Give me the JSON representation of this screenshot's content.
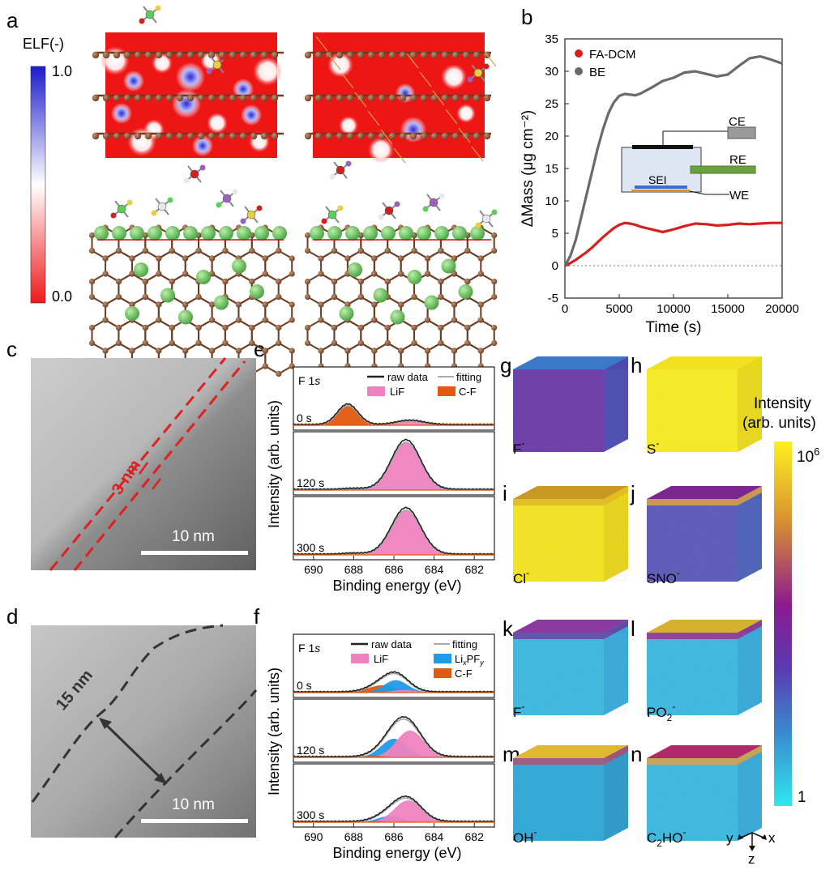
{
  "colors": {
    "elf_high": "#1c1ccc",
    "elf_low": "#ee1a1a",
    "red_series": "#d62020",
    "gray_series": "#6a6a6a",
    "lif": "#ee82c0",
    "cf": "#e05a10",
    "lipf": "#1e9be8",
    "tof_low": "#2ee8ee",
    "tof_high": "#fff020"
  },
  "panel_labels": [
    "a",
    "b",
    "c",
    "d",
    "e",
    "f",
    "g",
    "h",
    "i",
    "j",
    "k",
    "l",
    "m",
    "n"
  ],
  "panel_a": {
    "colorbar_title": "ELF(-)",
    "colorbar_max": "1.0",
    "colorbar_min": "0.0"
  },
  "panel_b": {
    "chart_data": {
      "type": "line",
      "title": "",
      "xlabel": "Time (s)",
      "ylabel": "ΔMass (μg cm⁻²)",
      "xlim": [
        0,
        20000
      ],
      "ylim": [
        -5,
        35
      ],
      "xticks": [
        0,
        5000,
        10000,
        15000,
        20000
      ],
      "yticks": [
        -5,
        0,
        5,
        10,
        15,
        20,
        25,
        30,
        35
      ],
      "series": [
        {
          "name": "FA-DCM",
          "color": "#d62020",
          "x": [
            0,
            500,
            1000,
            1500,
            2000,
            2500,
            3000,
            3500,
            4000,
            4500,
            5000,
            5500,
            6000,
            6500,
            7000,
            8000,
            9000,
            10000,
            11000,
            12000,
            13000,
            14000,
            15000,
            16000,
            17000,
            18000,
            19000,
            20000
          ],
          "y": [
            0,
            0.4,
            0.9,
            1.5,
            2.1,
            2.8,
            3.6,
            4.4,
            5.1,
            5.8,
            6.3,
            6.6,
            6.5,
            6.3,
            6.0,
            5.6,
            5.2,
            5.6,
            6.1,
            6.5,
            6.4,
            6.2,
            6.3,
            6.5,
            6.4,
            6.5,
            6.6,
            6.6
          ]
        },
        {
          "name": "BE",
          "color": "#6a6a6a",
          "x": [
            0,
            500,
            1000,
            1500,
            2000,
            2500,
            3000,
            3500,
            4000,
            4500,
            5000,
            5500,
            6000,
            6500,
            7000,
            8000,
            9000,
            10000,
            11000,
            12000,
            13000,
            14000,
            15000,
            16000,
            17000,
            18000,
            19000,
            20000
          ],
          "y": [
            0,
            1.5,
            4,
            7.5,
            11,
            14.5,
            18,
            21,
            23.5,
            25.2,
            26.2,
            26.5,
            26.4,
            26.3,
            26.6,
            27.5,
            28.5,
            29,
            29.8,
            30,
            29.6,
            29.2,
            29.5,
            30.8,
            32,
            32.3,
            31.8,
            31.2
          ]
        }
      ],
      "legend": "top-left",
      "inset_labels": [
        "CE",
        "RE",
        "SEI",
        "WE"
      ]
    }
  },
  "panel_c": {
    "thickness": "3 nm",
    "scale": "10 nm"
  },
  "panel_d": {
    "thickness": "15 nm",
    "scale": "10 nm"
  },
  "panel_e": {
    "chart_data": {
      "type": "area",
      "title": "F 1s",
      "xlabel": "Binding energy (eV)",
      "ylabel": "Intensity (arb. units)",
      "xlim": [
        691,
        681
      ],
      "xticks": [
        690,
        688,
        686,
        684,
        682
      ],
      "legend": [
        "raw data",
        "fitting",
        "LiF",
        "C-F"
      ],
      "subplots": [
        {
          "label": "0 s",
          "components": [
            {
              "name": "C-F",
              "center": 688.3,
              "fwhm": 1.2,
              "height": 0.38
            },
            {
              "name": "LiF",
              "center": 685.2,
              "fwhm": 1.6,
              "height": 0.08
            }
          ]
        },
        {
          "label": "120 s",
          "components": [
            {
              "name": "LiF",
              "center": 685.4,
              "fwhm": 1.7,
              "height": 0.92
            },
            {
              "name": "C-F",
              "center": 688.0,
              "fwhm": 1.2,
              "height": 0.02
            }
          ]
        },
        {
          "label": "300 s",
          "components": [
            {
              "name": "LiF",
              "center": 685.4,
              "fwhm": 1.7,
              "height": 0.86
            },
            {
              "name": "C-F",
              "center": 688.0,
              "fwhm": 1.2,
              "height": 0.02
            }
          ]
        }
      ]
    }
  },
  "panel_f": {
    "chart_data": {
      "type": "area",
      "title": "F 1s",
      "xlabel": "Binding energy (eV)",
      "ylabel": "Intensity (arb. units)",
      "xlim": [
        691,
        681
      ],
      "xticks": [
        690,
        688,
        686,
        684,
        682
      ],
      "legend": [
        "raw data",
        "fitting",
        "LiF",
        "LixPFy",
        "C-F"
      ],
      "subplots": [
        {
          "label": "0 s",
          "components": [
            {
              "name": "C-F",
              "center": 686.6,
              "fwhm": 1.6,
              "height": 0.14
            },
            {
              "name": "LixPFy",
              "center": 685.9,
              "fwhm": 1.4,
              "height": 0.24
            },
            {
              "name": "LiF",
              "center": 685.5,
              "fwhm": 1.4,
              "height": 0.05
            }
          ]
        },
        {
          "label": "120 s",
          "components": [
            {
              "name": "LixPFy",
              "center": 686.0,
              "fwhm": 1.5,
              "height": 0.36
            },
            {
              "name": "LiF",
              "center": 685.2,
              "fwhm": 1.6,
              "height": 0.52
            },
            {
              "name": "C-F",
              "center": 687.0,
              "fwhm": 1.2,
              "height": 0.03
            }
          ]
        },
        {
          "label": "300 s",
          "components": [
            {
              "name": "LixPFy",
              "center": 686.2,
              "fwhm": 1.4,
              "height": 0.12
            },
            {
              "name": "LiF",
              "center": 685.3,
              "fwhm": 1.6,
              "height": 0.42
            },
            {
              "name": "C-F",
              "center": 687.0,
              "fwhm": 1.2,
              "height": 0.02
            }
          ]
        }
      ]
    }
  },
  "tof": {
    "cubes": [
      {
        "id": "g",
        "ion": "F",
        "charge": "-"
      },
      {
        "id": "h",
        "ion": "S",
        "charge": "-"
      },
      {
        "id": "i",
        "ion": "Cl",
        "charge": "-"
      },
      {
        "id": "j",
        "ion": "SNO",
        "charge": "-"
      },
      {
        "id": "k",
        "ion": "F",
        "charge": "-"
      },
      {
        "id": "l",
        "ion": "PO",
        "sub": "2",
        "charge": "-"
      },
      {
        "id": "m",
        "ion": "OH",
        "charge": "-"
      },
      {
        "id": "n",
        "ion": "C",
        "sub": "2",
        "ion2": "HO",
        "charge": "-"
      }
    ],
    "colorbar_title": "Intensity",
    "colorbar_unit": "(arb. units)",
    "colorbar_max_base": "10",
    "colorbar_max_exp": "6",
    "colorbar_min": "1",
    "axes": {
      "x": "x",
      "y": "y",
      "z": "z"
    }
  }
}
